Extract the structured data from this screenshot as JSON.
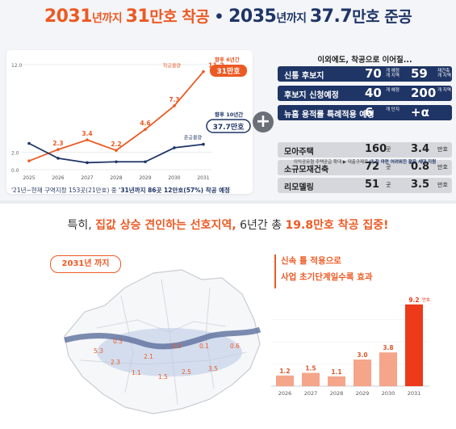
{
  "headline": {
    "p1": "2031",
    "p2": "년까지 ",
    "p3": "31",
    "p4": "만호 착공",
    "dot": " • ",
    "p5": "2035",
    "p6": "년까지 ",
    "p7": "37.7",
    "p8": "만호 준공"
  },
  "line_panel": {
    "footnote_a": "'21년~현재 구역지정 153곳(21만호) 중 ",
    "footnote_b": "'31년까지 86곳 12만호(57%) 착공 예정",
    "callout_start_label": "향후 6년간",
    "callout_start_value": "31만호",
    "callout_comp_label": "향후 10년간",
    "callout_comp_value": "37.7만호"
  },
  "right_panel": {
    "header": "이외에도, 착공으로 이어질...",
    "rows": [
      {
        "label": "신통 후보지",
        "v1": "70",
        "u1": "개 예정 개 지역",
        "v2": "59",
        "u2": "재건축 개 지역",
        "style": "dark"
      },
      {
        "label": "후보지 신청예정",
        "v1": "40",
        "u1": "개 예정",
        "v2": "200",
        "u2": "개 지역",
        "style": "dark"
      },
      {
        "label": "뉴홈 용적률 특례적용 예정",
        "v1": "6",
        "u1": "개 단지",
        "v2": "+α",
        "u2": "",
        "style": "dark"
      },
      {
        "label": "모아주택",
        "v1": "160",
        "u1": "곳",
        "v2": "3.4",
        "u2": "만호",
        "style": "grey"
      },
      {
        "label": "소규모재건축",
        "v1": "72",
        "u1": "곳",
        "v2": "0.8",
        "u2": "만호",
        "style": "grey"
      },
      {
        "label": "리모델링",
        "v1": "51",
        "u1": "곳",
        "v2": "3.5",
        "u2": "만호",
        "style": "grey"
      }
    ],
    "note_a": "이익공유형 주택공급 확대 ▶ 대출규제로 ",
    "note_b": "내 집 마련 어려워진 젊은 세대 지원"
  },
  "bottom": {
    "headline_a": "특히, ",
    "headline_b": "집값 상승 견인하는 선호지역,",
    "headline_c": " 6년간 총 ",
    "headline_d": "19.8만호 착공 집중!",
    "map_tag": "2031년 까지",
    "ann_line1": "신속 틀 적용으로",
    "ann_line2": "사업 초기단계일수록 효과",
    "map_labels": [
      "0.3",
      "5.3",
      "2.3",
      "1.1",
      "2.1",
      "0.5",
      "0.1",
      "0.6",
      "1.5",
      "2.5",
      "3.5"
    ],
    "map_unit": "만호"
  },
  "colors": {
    "orange": "#ec5a24",
    "navy": "#1f3566",
    "bar": "#f4a58a",
    "bar_last": "#ec3a1a"
  },
  "chart_data": [
    {
      "type": "line",
      "x": [
        "2025",
        "2026",
        "2027",
        "2028",
        "2029",
        "2030",
        "2031"
      ],
      "yticks": [
        "0.0",
        "2.0",
        "12.0"
      ],
      "ylim": [
        0,
        12
      ],
      "series": [
        {
          "name": "착공물량",
          "values": [
            1.0,
            2.3,
            3.4,
            2.2,
            4.6,
            7.3,
            11.2
          ],
          "labels": [
            "",
            "2.3",
            "3.4",
            "2.2",
            "4.6",
            "7.3",
            "11.2"
          ]
        },
        {
          "name": "준공물량",
          "values": [
            3.0,
            1.3,
            0.8,
            0.9,
            0.9,
            2.5,
            2.9
          ],
          "labels": [
            "",
            "",
            "",
            "",
            "",
            "",
            ""
          ]
        }
      ]
    },
    {
      "type": "bar",
      "categories": [
        "2026",
        "2027",
        "2028",
        "2029",
        "2030",
        "2031"
      ],
      "values": [
        1.2,
        1.5,
        1.1,
        3.0,
        3.8,
        9.2
      ],
      "labels": [
        "1.2",
        "1.5",
        "1.1",
        "3.0",
        "3.8",
        "9.2"
      ],
      "unit": "만호"
    }
  ]
}
